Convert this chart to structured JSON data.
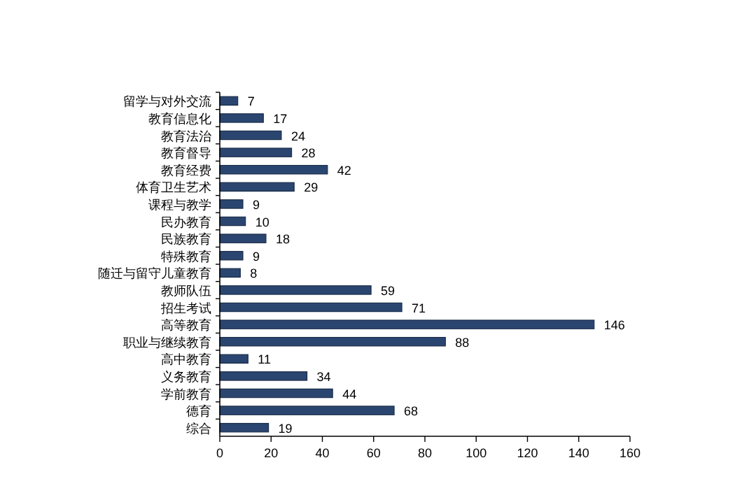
{
  "chart_data": {
    "type": "bar",
    "orientation": "horizontal",
    "categories": [
      "留学与对外交流",
      "教育信息化",
      "教育法治",
      "教育督导",
      "教育经费",
      "体育卫生艺术",
      "课程与教学",
      "民办教育",
      "民族教育",
      "特殊教育",
      "随迁与留守儿童教育",
      "教师队伍",
      "招生考试",
      "高等教育",
      "职业与继续教育",
      "高中教育",
      "义务教育",
      "学前教育",
      "德育",
      "综合"
    ],
    "values": [
      7,
      17,
      24,
      28,
      42,
      29,
      9,
      10,
      18,
      9,
      8,
      59,
      71,
      146,
      88,
      11,
      34,
      44,
      68,
      19
    ],
    "color": "#2a4670",
    "xlim": [
      0,
      160
    ],
    "xticks": [
      0,
      20,
      40,
      60,
      80,
      100,
      120,
      140,
      160
    ],
    "data_labels": true
  }
}
